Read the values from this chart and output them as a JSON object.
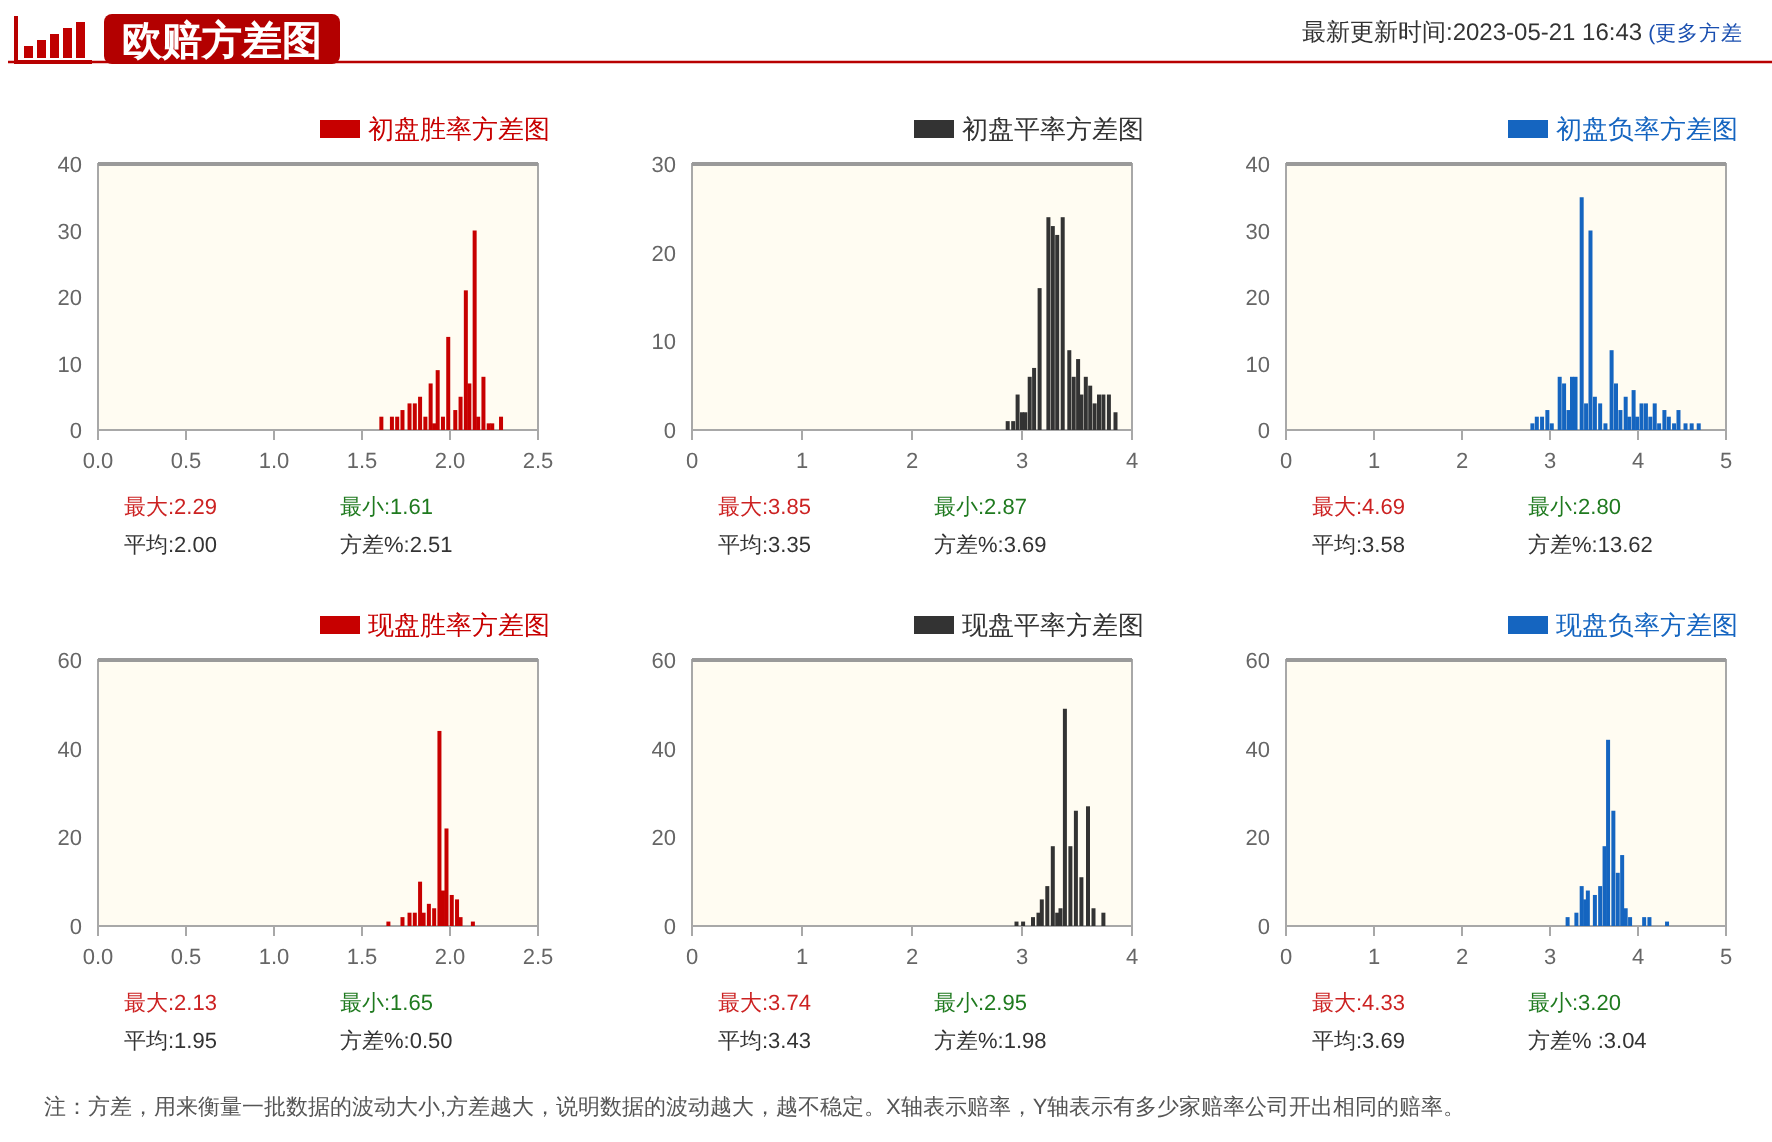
{
  "chart_data": [
    {
      "type": "other",
      "title": "欧赔方差图",
      "subtitle": "最新更新时间:2023-05-21 16:43",
      "annotations": [
        "(更多方差"
      ]
    },
    {
      "type": "bar",
      "series": [
        {
          "name": "初盘胜率方差图",
          "color": "#c70000",
          "x": [
            1.61,
            1.67,
            1.7,
            1.73,
            1.77,
            1.8,
            1.83,
            1.86,
            1.89,
            1.91,
            1.93,
            1.96,
            1.99,
            2.03,
            2.06,
            2.09,
            2.11,
            2.14,
            2.16,
            2.19,
            2.22,
            2.24,
            2.29
          ],
          "values": [
            2,
            2,
            2,
            3,
            4,
            4,
            5,
            2,
            7,
            1,
            9,
            2,
            14,
            3,
            5,
            21,
            7,
            30,
            2,
            8,
            1,
            1,
            2
          ]
        }
      ],
      "xlim": [
        0,
        2.5
      ],
      "xticks": [
        {
          "value": 0,
          "label": "0.0"
        },
        0.5,
        {
          "value": 1,
          "label": "1.0"
        },
        1.5,
        {
          "value": 2,
          "label": "2.0"
        },
        2.5
      ],
      "ylim": [
        0,
        40
      ],
      "yticks": [
        0,
        10,
        20,
        30,
        40
      ],
      "legend": "top right",
      "annotations": [
        "最大:2.29",
        "最小:1.61",
        "平均:2.00",
        "方差%:2.51"
      ]
    },
    {
      "type": "bar",
      "series": [
        {
          "name": "初盘平率方差图",
          "color": "#333333",
          "x": [
            2.87,
            2.92,
            2.96,
            3.0,
            3.03,
            3.07,
            3.11,
            3.16,
            3.24,
            3.28,
            3.32,
            3.37,
            3.43,
            3.47,
            3.51,
            3.54,
            3.58,
            3.62,
            3.66,
            3.7,
            3.74,
            3.79,
            3.85
          ],
          "values": [
            1,
            1,
            4,
            2,
            2,
            6,
            7,
            16,
            24,
            23,
            22,
            24,
            9,
            6,
            8,
            4,
            6,
            5,
            3,
            4,
            4,
            4,
            2
          ]
        }
      ],
      "xlim": [
        0,
        4
      ],
      "xticks": [
        0,
        1,
        2,
        3,
        4
      ],
      "ylim": [
        0,
        30
      ],
      "yticks": [
        0,
        10,
        20,
        30
      ],
      "legend": "top right",
      "annotations": [
        "最大:3.85",
        "最小:2.87",
        "平均:3.35",
        "方差%:3.69"
      ]
    },
    {
      "type": "bar",
      "series": [
        {
          "name": "初盘负率方差图",
          "color": "#1565c0",
          "x": [
            2.8,
            2.85,
            2.91,
            2.97,
            3.02,
            3.11,
            3.16,
            3.21,
            3.25,
            3.29,
            3.36,
            3.41,
            3.46,
            3.51,
            3.57,
            3.63,
            3.7,
            3.75,
            3.8,
            3.86,
            3.9,
            3.95,
            3.99,
            4.04,
            4.09,
            4.14,
            4.19,
            4.24,
            4.3,
            4.35,
            4.41,
            4.46,
            4.54,
            4.61,
            4.69
          ],
          "values": [
            1,
            2,
            2,
            3,
            1,
            8,
            7,
            3,
            8,
            8,
            35,
            4,
            30,
            5,
            4,
            1,
            12,
            7,
            3,
            5,
            2,
            6,
            2,
            4,
            4,
            2,
            4,
            1,
            3,
            2,
            1,
            3,
            1,
            1,
            1
          ]
        }
      ],
      "xlim": [
        0,
        5
      ],
      "xticks": [
        0,
        1,
        2,
        3,
        4,
        5
      ],
      "ylim": [
        0,
        40
      ],
      "yticks": [
        0,
        10,
        20,
        30,
        40
      ],
      "legend": "top right",
      "annotations": [
        "最大:4.69",
        "最小:2.80",
        "平均:3.58",
        "方差%:13.62"
      ]
    },
    {
      "type": "bar",
      "series": [
        {
          "name": "现盘胜率方差图",
          "color": "#c70000",
          "x": [
            1.65,
            1.73,
            1.77,
            1.8,
            1.83,
            1.85,
            1.88,
            1.91,
            1.94,
            1.96,
            1.98,
            2.01,
            2.04,
            2.06,
            2.13
          ],
          "values": [
            1,
            2,
            3,
            3,
            10,
            3,
            5,
            4,
            44,
            8,
            22,
            7,
            6,
            2,
            1
          ]
        }
      ],
      "xlim": [
        0,
        2.5
      ],
      "xticks": [
        {
          "value": 0,
          "label": "0.0"
        },
        0.5,
        {
          "value": 1,
          "label": "1.0"
        },
        1.5,
        {
          "value": 2,
          "label": "2.0"
        },
        2.5
      ],
      "ylim": [
        0,
        60
      ],
      "yticks": [
        0,
        20,
        40,
        60
      ],
      "legend": "top right",
      "annotations": [
        "最大:2.13",
        "最小:1.65",
        "平均:1.95",
        "方差%:0.50"
      ]
    },
    {
      "type": "bar",
      "series": [
        {
          "name": "现盘平率方差图",
          "color": "#333333",
          "x": [
            2.95,
            3.01,
            3.1,
            3.15,
            3.18,
            3.23,
            3.28,
            3.32,
            3.35,
            3.39,
            3.44,
            3.49,
            3.54,
            3.6,
            3.65,
            3.74
          ],
          "values": [
            1,
            1,
            2,
            3,
            6,
            9,
            18,
            3,
            4,
            49,
            18,
            26,
            11,
            27,
            4,
            3
          ]
        }
      ],
      "xlim": [
        0,
        4
      ],
      "xticks": [
        0,
        1,
        2,
        3,
        4
      ],
      "ylim": [
        0,
        60
      ],
      "yticks": [
        0,
        20,
        40,
        60
      ],
      "legend": "top right",
      "annotations": [
        "最大:3.74",
        "最小:2.95",
        "平均:3.43",
        "方差%:1.98"
      ]
    },
    {
      "type": "bar",
      "series": [
        {
          "name": "现盘负率方差图",
          "color": "#1565c0",
          "x": [
            3.2,
            3.3,
            3.36,
            3.4,
            3.43,
            3.51,
            3.57,
            3.62,
            3.66,
            3.72,
            3.77,
            3.82,
            3.86,
            3.91,
            4.07,
            4.13,
            4.33
          ],
          "values": [
            2,
            3,
            9,
            6,
            8,
            7,
            9,
            18,
            42,
            26,
            12,
            16,
            4,
            2,
            2,
            2,
            1
          ]
        }
      ],
      "xlim": [
        0,
        5
      ],
      "xticks": [
        0,
        1,
        2,
        3,
        4,
        5
      ],
      "ylim": [
        0,
        60
      ],
      "yticks": [
        0,
        20,
        40,
        60
      ],
      "legend": "top right",
      "annotations": [
        "最大:4.33",
        "最小:3.20",
        "平均:3.69",
        "方差% :3.04"
      ]
    },
    {
      "type": "other",
      "annotations": [
        "注：方差，用来衡量一批数据的波动大小,方差越大，说明数据的波动越大，越不稳定。X轴表示赔率，Y轴表示有多少家赔率公司开出相同的赔率。"
      ]
    }
  ]
}
